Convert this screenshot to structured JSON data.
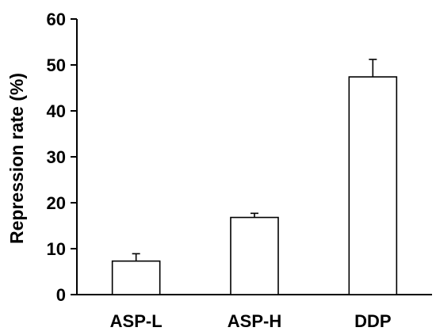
{
  "chart_data": {
    "type": "bar",
    "title": "",
    "xlabel": "",
    "ylabel": "Repression rate (%)",
    "ylim": [
      0,
      60
    ],
    "yticks": [
      0,
      10,
      20,
      30,
      40,
      50,
      60
    ],
    "categories": [
      "ASP-L",
      "ASP-H",
      "DDP"
    ],
    "values": [
      7.3,
      16.8,
      47.4
    ],
    "error_bars": [
      1.6,
      0.9,
      3.8
    ],
    "bar_fill": "#ffffff",
    "bar_stroke": "#000000",
    "legend": "none",
    "grid": false
  }
}
